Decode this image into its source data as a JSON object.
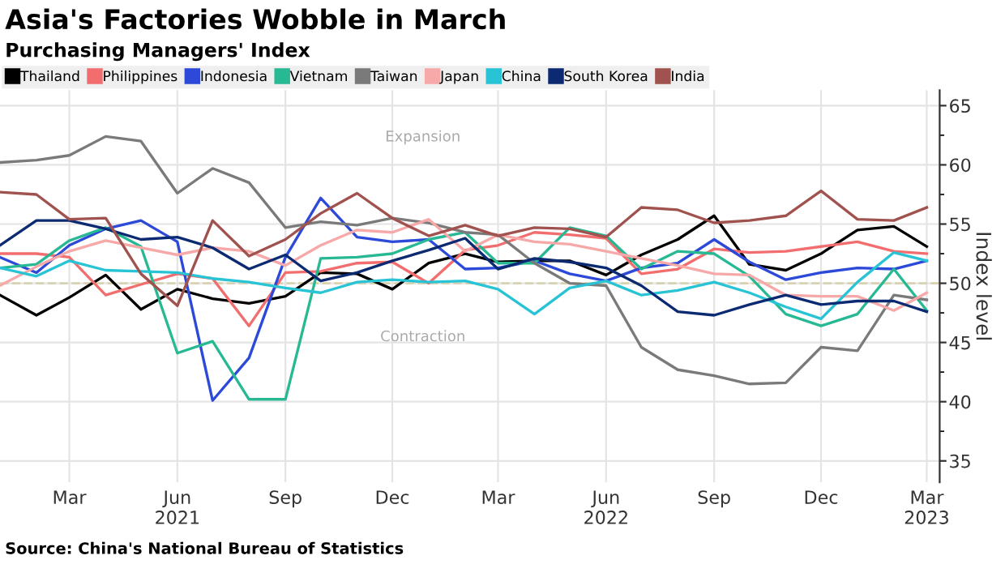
{
  "chart_data": {
    "type": "line",
    "title": "Asia's Factories Wobble in March",
    "subtitle": "Purchasing Managers' Index",
    "ylabel": "Index level",
    "x": [
      "2021-01",
      "2021-02",
      "2021-03",
      "2021-04",
      "2021-05",
      "2021-06",
      "2021-07",
      "2021-08",
      "2021-09",
      "2021-10",
      "2021-11",
      "2021-12",
      "2022-01",
      "2022-02",
      "2022-03",
      "2022-04",
      "2022-05",
      "2022-06",
      "2022-07",
      "2022-08",
      "2022-09",
      "2022-10",
      "2022-11",
      "2022-12",
      "2023-01",
      "2023-02",
      "2023-03"
    ],
    "series": [
      {
        "name": "Thailand",
        "color": "#000000",
        "values": [
          49.0,
          47.3,
          48.8,
          50.7,
          47.8,
          49.5,
          48.7,
          48.3,
          48.9,
          50.9,
          50.8,
          49.5,
          51.7,
          52.5,
          51.8,
          51.9,
          51.9,
          50.7,
          52.4,
          53.7,
          55.7,
          51.6,
          51.1,
          52.5,
          54.5,
          54.8,
          53.1
        ]
      },
      {
        "name": "Philippines",
        "color": "#f26d6d",
        "values": [
          52.5,
          52.5,
          52.2,
          49.0,
          49.9,
          50.8,
          50.4,
          46.4,
          50.9,
          51.0,
          51.7,
          51.8,
          50.0,
          52.8,
          53.2,
          54.3,
          54.1,
          53.8,
          50.8,
          51.2,
          52.9,
          52.6,
          52.7,
          53.1,
          53.5,
          52.7,
          52.5
        ]
      },
      {
        "name": "Indonesia",
        "color": "#2c49d8",
        "values": [
          52.2,
          50.9,
          53.2,
          54.6,
          55.3,
          53.5,
          40.1,
          43.7,
          52.2,
          57.2,
          53.9,
          53.5,
          53.7,
          51.2,
          51.3,
          51.9,
          50.8,
          50.2,
          51.3,
          51.7,
          53.7,
          51.8,
          50.3,
          50.9,
          51.3,
          51.2,
          51.9
        ]
      },
      {
        "name": "Vietnam",
        "color": "#27b894",
        "values": [
          51.3,
          51.6,
          53.6,
          54.7,
          53.1,
          44.1,
          45.1,
          40.2,
          40.2,
          52.1,
          52.2,
          52.5,
          53.7,
          54.3,
          51.7,
          51.7,
          54.7,
          54.0,
          51.2,
          52.7,
          52.5,
          50.6,
          47.4,
          46.4,
          47.4,
          51.2,
          47.7
        ]
      },
      {
        "name": "Taiwan",
        "color": "#7a7a7a",
        "values": [
          60.2,
          60.4,
          60.8,
          62.4,
          62.0,
          57.6,
          59.7,
          58.5,
          54.7,
          55.2,
          54.9,
          55.5,
          55.1,
          54.3,
          54.1,
          51.7,
          50.0,
          49.8,
          44.6,
          42.7,
          42.2,
          41.5,
          41.6,
          44.6,
          44.3,
          49.0,
          48.6
        ]
      },
      {
        "name": "Japan",
        "color": "#f7a8a8",
        "values": [
          49.8,
          51.4,
          52.7,
          53.6,
          53.0,
          52.4,
          53.0,
          52.7,
          51.5,
          53.2,
          54.5,
          54.3,
          55.4,
          52.7,
          54.1,
          53.5,
          53.3,
          52.7,
          52.1,
          51.5,
          50.8,
          50.7,
          49.0,
          48.9,
          48.9,
          47.7,
          49.2
        ]
      },
      {
        "name": "China",
        "color": "#29c3d6",
        "values": [
          51.3,
          50.6,
          51.9,
          51.1,
          51.0,
          50.9,
          50.4,
          50.1,
          49.6,
          49.2,
          50.1,
          50.3,
          50.1,
          50.2,
          49.5,
          47.4,
          49.6,
          50.2,
          49.0,
          49.4,
          50.1,
          49.2,
          48.0,
          47.0,
          50.1,
          52.6,
          51.9
        ]
      },
      {
        "name": "South Korea",
        "color": "#0b2a72",
        "values": [
          53.2,
          55.3,
          55.3,
          54.6,
          53.7,
          53.9,
          53.0,
          51.2,
          52.4,
          50.2,
          50.9,
          51.9,
          52.8,
          53.8,
          51.2,
          52.1,
          51.8,
          51.3,
          49.8,
          47.6,
          47.3,
          48.2,
          49.0,
          48.2,
          48.5,
          48.5,
          47.6
        ]
      },
      {
        "name": "India",
        "color": "#a0524f",
        "values": [
          57.7,
          57.5,
          55.4,
          55.5,
          50.8,
          48.1,
          55.3,
          52.3,
          53.7,
          55.9,
          57.6,
          55.5,
          54.0,
          54.9,
          54.0,
          54.7,
          54.6,
          53.9,
          56.4,
          56.2,
          55.1,
          55.3,
          55.7,
          57.8,
          55.4,
          55.3,
          56.4
        ]
      }
    ],
    "xlim": [
      "2021-01-01",
      "2023-03-12"
    ],
    "xticks": [
      {
        "value": "2021-03",
        "label": "Mar"
      },
      {
        "value": "2021-06",
        "label": "Jun\n2021"
      },
      {
        "value": "2021-09",
        "label": "Sep"
      },
      {
        "value": "2021-12",
        "label": "Dec"
      },
      {
        "value": "2022-03",
        "label": "Mar"
      },
      {
        "value": "2022-06",
        "label": "Jun\n2022"
      },
      {
        "value": "2022-09",
        "label": "Sep"
      },
      {
        "value": "2022-12",
        "label": "Dec"
      },
      {
        "value": "2023-03",
        "label": "Mar\n2023"
      }
    ],
    "ylim": [
      33.2,
      66.3
    ],
    "yticks": [
      35,
      {
        "value": 37.5,
        "label": null
      },
      40,
      {
        "value": 42.5,
        "label": null
      },
      45,
      {
        "value": 47.5,
        "label": null
      },
      50,
      {
        "value": 52.5,
        "label": null
      },
      55,
      {
        "value": 57.5,
        "label": null
      },
      60,
      {
        "value": 62.5,
        "label": null
      },
      65
    ],
    "ref_lines": [
      {
        "axis": "y",
        "value": 50,
        "color": "#d9d2b0",
        "line_style": "dashed"
      }
    ],
    "annotations": [
      "Expansion",
      "Contraction",
      "Source: China's National Bureau of Statistics"
    ],
    "grid": true,
    "legend": "top",
    "line_style": "solid",
    "marker": "none"
  }
}
